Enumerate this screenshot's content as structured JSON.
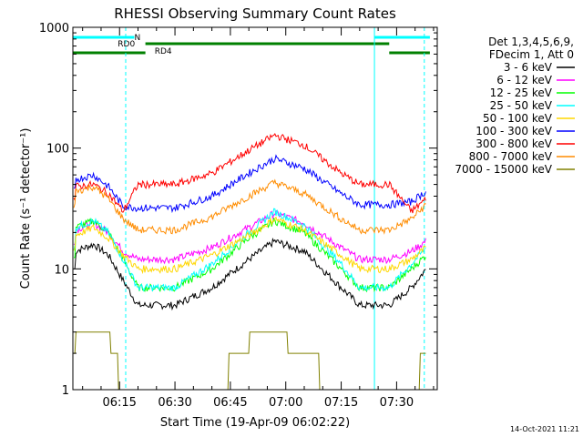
{
  "chart_data": {
    "type": "line",
    "title": "RHESSI Observing Summary Count Rates",
    "xlabel": "Start Time (19-Apr-09 06:02:22)",
    "ylabel": "Count Rate (s⁻¹ detector⁻¹)",
    "y_scale": "log",
    "ylim": [
      1,
      1000
    ],
    "xlim": [
      "06:02:22",
      "07:41:00"
    ],
    "x_ticks": [
      "06:15",
      "06:30",
      "06:45",
      "07:00",
      "07:15",
      "07:30"
    ],
    "y_ticks": [
      "1",
      "10",
      "100",
      "1000"
    ],
    "legend_header": [
      "Det 1,3,4,5,6,9,",
      "FDecim 1, Att 0"
    ],
    "legend_position": "right",
    "footer": "14-Oct-2021 11:21",
    "flags": [
      {
        "label": "N",
        "color": "#00ffff",
        "segments": [
          [
            "06:02:22",
            "06:19:00"
          ],
          [
            "07:24:00",
            "07:39:00"
          ]
        ]
      },
      {
        "label": "RD0",
        "color": "#008000",
        "segments": [
          [
            "06:22:00",
            "07:28:00"
          ]
        ]
      },
      {
        "label": "RD4",
        "color": "#008000",
        "segments": [
          [
            "06:02:22",
            "06:22:00"
          ],
          [
            "07:28:00",
            "07:39:00"
          ]
        ]
      }
    ],
    "saa_boundaries": [
      "06:02:22",
      "07:24:00"
    ],
    "night_boundaries": [
      "06:16:40",
      "07:37:30"
    ],
    "x": [
      "06:03",
      "06:08",
      "06:12",
      "06:16",
      "06:20",
      "06:30",
      "06:40",
      "06:50",
      "06:57",
      "07:05",
      "07:15",
      "07:20",
      "07:28",
      "07:34",
      "07:38"
    ],
    "series": [
      {
        "name": "3 - 6 keV",
        "color": "#000000",
        "values": [
          14,
          16,
          13,
          8,
          5,
          5,
          7,
          12,
          17,
          14,
          7,
          5,
          5,
          7,
          10
        ]
      },
      {
        "name": "6 - 12 keV",
        "color": "#ff00ff",
        "values": [
          21,
          24,
          20,
          14,
          12,
          12,
          15,
          22,
          29,
          24,
          15,
          12,
          12,
          14,
          17
        ]
      },
      {
        "name": "12 - 25 keV",
        "color": "#00ff00",
        "values": [
          22,
          25,
          20,
          12,
          7,
          7,
          10,
          18,
          25,
          20,
          10,
          7,
          7,
          10,
          13
        ]
      },
      {
        "name": "25 - 50 keV",
        "color": "#00ffff",
        "values": [
          22,
          25,
          20,
          12,
          7,
          7,
          11,
          20,
          30,
          23,
          11,
          7,
          7,
          11,
          15
        ]
      },
      {
        "name": "50 - 100 keV",
        "color": "#ffd700",
        "values": [
          19,
          22,
          18,
          13,
          10,
          10,
          13,
          19,
          26,
          21,
          13,
          10,
          10,
          12,
          15
        ]
      },
      {
        "name": "100 - 300 keV",
        "color": "#0000ff",
        "values": [
          55,
          60,
          48,
          33,
          32,
          32,
          40,
          62,
          82,
          68,
          42,
          34,
          34,
          36,
          44
        ]
      },
      {
        "name": "300 - 800 keV",
        "color": "#ff0000",
        "values": [
          48,
          50,
          42,
          30,
          50,
          50,
          62,
          96,
          128,
          106,
          62,
          50,
          50,
          30,
          38
        ]
      },
      {
        "name": "800 - 7000 keV",
        "color": "#ff8c00",
        "values": [
          44,
          48,
          38,
          26,
          21,
          21,
          27,
          40,
          52,
          42,
          26,
          21,
          21,
          26,
          34
        ]
      },
      {
        "name": "7000 - 15000 keV",
        "color": "#808000",
        "values": [
          3,
          3,
          3,
          1,
          1,
          1,
          1,
          2.5,
          3,
          2,
          1,
          1,
          1,
          1,
          2
        ]
      }
    ]
  }
}
